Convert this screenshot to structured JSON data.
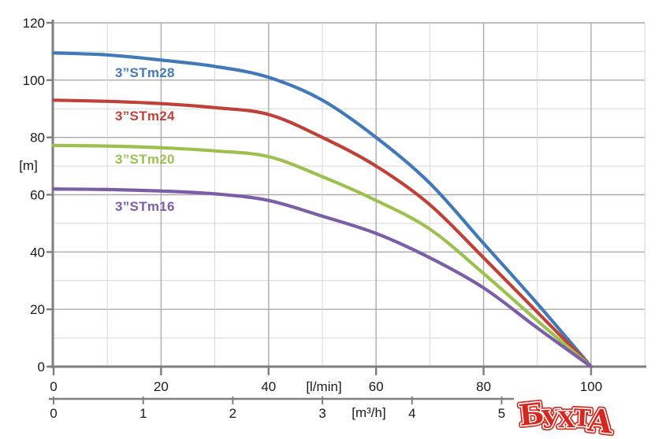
{
  "chart_data": {
    "type": "line",
    "title": "",
    "y_axis": {
      "unit": "[m]",
      "ticks": [
        0,
        20,
        40,
        60,
        80,
        100,
        120
      ],
      "range": [
        0,
        120
      ],
      "minor_step": 10
    },
    "x_axis_primary": {
      "unit": "[l/min]",
      "ticks": [
        0,
        20,
        40,
        60,
        80,
        100
      ],
      "range": [
        0,
        110
      ],
      "minor_step": 10
    },
    "x_axis_secondary": {
      "unit": "[m³/h]",
      "ticks": [
        0,
        1,
        2,
        3,
        4,
        5
      ]
    },
    "x_lmin": [
      0,
      10,
      20,
      30,
      40,
      50,
      60,
      70,
      80,
      90,
      100
    ],
    "series": [
      {
        "name": "3”STm28",
        "color": "#4279b8",
        "values": [
          109.5,
          108.8,
          107,
          104.8,
          101,
          93,
          80,
          64,
          43,
          22,
          0
        ]
      },
      {
        "name": "3”STm24",
        "color": "#bf4138",
        "values": [
          93,
          92.6,
          91.8,
          90.4,
          88,
          80,
          70,
          56.5,
          38,
          19,
          0
        ]
      },
      {
        "name": "3”STm20",
        "color": "#9dc04e",
        "values": [
          77.2,
          77,
          76.4,
          75.3,
          73.3,
          66.3,
          58,
          48,
          32.5,
          16,
          0
        ]
      },
      {
        "name": "3”STm16",
        "color": "#7b5ea7",
        "values": [
          62,
          61.8,
          61.3,
          60.3,
          58,
          52.5,
          46.5,
          38,
          27.5,
          13.5,
          0
        ]
      }
    ],
    "grid": {
      "major_color": "#ababab",
      "minor_color": "#d8d8d8",
      "axis_color": "#7f7f7f",
      "legend": "inline-curve-labels"
    }
  },
  "watermark": {
    "text": "БУХТА",
    "color": "#d7261d"
  }
}
